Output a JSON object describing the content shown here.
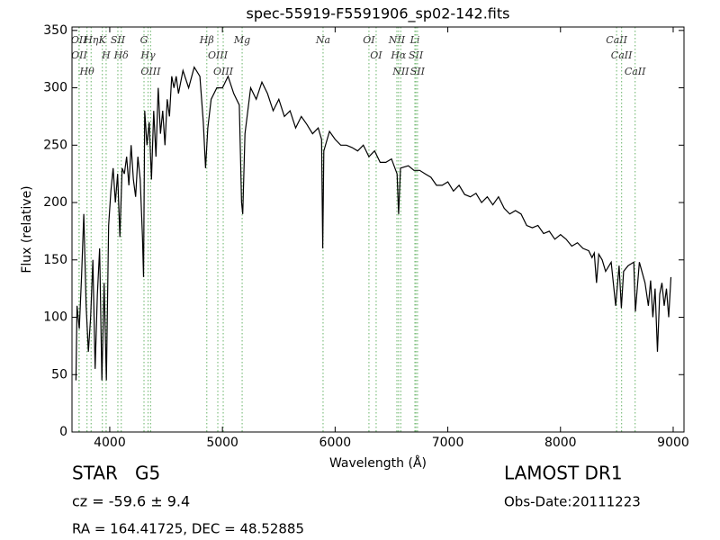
{
  "chart_data": {
    "type": "line",
    "title": "spec-55919-F5591906_sp02-142.fits",
    "x_label": "Wavelength (Å)",
    "y_label": "Flux (relative)",
    "xlim": [
      3665,
      9096
    ],
    "ylim": [
      0,
      353
    ],
    "xticks": [
      4000,
      5000,
      6000,
      7000,
      8000,
      9000
    ],
    "yticks": [
      0,
      50,
      100,
      150,
      200,
      250,
      300,
      350
    ],
    "x": [
      3700,
      3710,
      3730,
      3750,
      3770,
      3790,
      3810,
      3830,
      3850,
      3870,
      3890,
      3910,
      3930,
      3950,
      3970,
      3990,
      4010,
      4030,
      4050,
      4070,
      4090,
      4110,
      4130,
      4150,
      4170,
      4190,
      4210,
      4230,
      4250,
      4270,
      4290,
      4300,
      4310,
      4330,
      4350,
      4370,
      4390,
      4410,
      4430,
      4450,
      4470,
      4490,
      4510,
      4530,
      4550,
      4570,
      4590,
      4610,
      4650,
      4700,
      4750,
      4800,
      4830,
      4850,
      4870,
      4900,
      4950,
      5000,
      5050,
      5100,
      5150,
      5170,
      5180,
      5200,
      5250,
      5300,
      5350,
      5400,
      5450,
      5500,
      5550,
      5600,
      5650,
      5700,
      5750,
      5800,
      5850,
      5880,
      5890,
      5900,
      5950,
      6000,
      6050,
      6100,
      6150,
      6200,
      6250,
      6300,
      6350,
      6400,
      6450,
      6500,
      6550,
      6563,
      6580,
      6650,
      6700,
      6750,
      6800,
      6850,
      6900,
      6950,
      7000,
      7050,
      7100,
      7150,
      7200,
      7250,
      7300,
      7350,
      7400,
      7450,
      7500,
      7550,
      7600,
      7650,
      7700,
      7750,
      7800,
      7850,
      7900,
      7950,
      8000,
      8050,
      8100,
      8150,
      8200,
      8250,
      8280,
      8300,
      8320,
      8340,
      8370,
      8400,
      8450,
      8490,
      8520,
      8540,
      8560,
      8600,
      8650,
      8665,
      8700,
      8750,
      8780,
      8800,
      8820,
      8840,
      8860,
      8880,
      8900,
      8920,
      8940,
      8960,
      8980
    ],
    "series": [
      {
        "color": "#000000",
        "values": [
          45,
          110,
          90,
          135,
          190,
          110,
          70,
          100,
          150,
          55,
          120,
          160,
          45,
          130,
          45,
          180,
          210,
          230,
          200,
          225,
          170,
          230,
          225,
          240,
          215,
          250,
          220,
          205,
          240,
          220,
          170,
          135,
          280,
          250,
          270,
          220,
          280,
          240,
          300,
          260,
          280,
          250,
          290,
          275,
          310,
          300,
          310,
          295,
          315,
          300,
          318,
          310,
          270,
          230,
          265,
          290,
          300,
          300,
          310,
          295,
          285,
          200,
          190,
          260,
          300,
          290,
          305,
          295,
          280,
          290,
          275,
          280,
          265,
          275,
          268,
          260,
          265,
          255,
          160,
          245,
          262,
          255,
          250,
          250,
          248,
          245,
          250,
          240,
          245,
          235,
          235,
          238,
          225,
          190,
          230,
          232,
          228,
          228,
          225,
          222,
          215,
          215,
          218,
          210,
          215,
          207,
          205,
          208,
          200,
          205,
          198,
          205,
          195,
          190,
          193,
          190,
          180,
          178,
          180,
          173,
          175,
          168,
          172,
          168,
          162,
          165,
          160,
          158,
          152,
          156,
          130,
          155,
          150,
          140,
          148,
          110,
          145,
          108,
          140,
          145,
          148,
          105,
          148,
          130,
          110,
          132,
          100,
          125,
          70,
          120,
          130,
          110,
          125,
          100,
          135
        ]
      }
    ],
    "line_color": "#7fbf7f",
    "spectral_lines": [
      {
        "label": "OII",
        "wavelength": 3727
      },
      {
        "label": "OII",
        "wavelength": 3729
      },
      {
        "label": "Hθ",
        "wavelength": 3798
      },
      {
        "label": "Hη",
        "wavelength": 3835
      },
      {
        "label": "K",
        "wavelength": 3934
      },
      {
        "label": "H",
        "wavelength": 3968
      },
      {
        "label": "SII",
        "wavelength": 4072
      },
      {
        "label": "Hδ",
        "wavelength": 4102
      },
      {
        "label": "G",
        "wavelength": 4304
      },
      {
        "label": "Hγ",
        "wavelength": 4340
      },
      {
        "label": "OIII",
        "wavelength": 4363
      },
      {
        "label": "Hβ",
        "wavelength": 4861
      },
      {
        "label": "OIII",
        "wavelength": 4959
      },
      {
        "label": "OIII",
        "wavelength": 5007
      },
      {
        "label": "Mg",
        "wavelength": 5175
      },
      {
        "label": "Na",
        "wavelength": 5893
      },
      {
        "label": "OI",
        "wavelength": 6300
      },
      {
        "label": "OI",
        "wavelength": 6364
      },
      {
        "label": "NII",
        "wavelength": 6548
      },
      {
        "label": "Hα",
        "wavelength": 6563
      },
      {
        "label": "NII",
        "wavelength": 6583
      },
      {
        "label": "Li",
        "wavelength": 6708
      },
      {
        "label": "SII",
        "wavelength": 6717
      },
      {
        "label": "SII",
        "wavelength": 6731
      },
      {
        "label": "CaII",
        "wavelength": 8498
      },
      {
        "label": "CaII",
        "wavelength": 8542
      },
      {
        "label": "CaII",
        "wavelength": 8662
      }
    ],
    "object_type": "STAR   G5",
    "redshift": "cz = -59.6 ± 9.4",
    "coordinates": "RA = 164.41725, DEC = 48.52885",
    "survey": "LAMOST DR1",
    "obs_date": "Obs-Date:20111223"
  }
}
